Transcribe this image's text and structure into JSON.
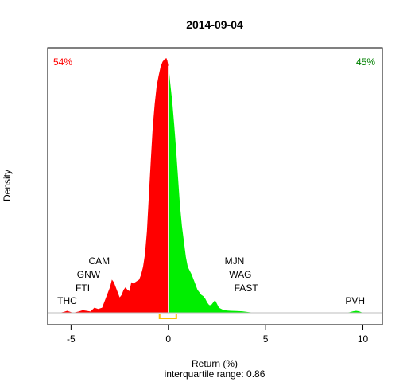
{
  "chart_data": {
    "type": "area",
    "title": "2014-09-04",
    "xlabel": "Return (%)",
    "subtitle": "interquartile range: 0.86",
    "ylabel": "Density",
    "xlim": [
      -6.2,
      11.0
    ],
    "x_ticks": [
      -5,
      0,
      5,
      10
    ],
    "x_tick_labels": [
      "-5",
      "0",
      "5",
      "10"
    ],
    "ylim": [
      0,
      1.0
    ],
    "negative_share": "54%",
    "positive_share": "45%",
    "colors": {
      "negative": "#ff0000",
      "positive": "#00ee00",
      "negative_label": "#ff0000",
      "positive_label": "#008000",
      "iqr_bracket": "#ffc000",
      "baseline": "#bebebe"
    },
    "iqr": {
      "low": -0.45,
      "high": 0.41
    },
    "density": {
      "x": [
        -6.2,
        -5.6,
        -5.35,
        -5.2,
        -5.05,
        -4.9,
        -4.6,
        -4.4,
        -4.2,
        -4.0,
        -3.8,
        -3.6,
        -3.4,
        -3.2,
        -3.0,
        -2.9,
        -2.8,
        -2.7,
        -2.6,
        -2.5,
        -2.4,
        -2.3,
        -2.2,
        -2.1,
        -2.0,
        -1.9,
        -1.8,
        -1.7,
        -1.6,
        -1.5,
        -1.4,
        -1.3,
        -1.2,
        -1.1,
        -1.0,
        -0.9,
        -0.8,
        -0.7,
        -0.6,
        -0.5,
        -0.4,
        -0.3,
        -0.2,
        -0.1,
        -0.05,
        0.0,
        0.05,
        0.1,
        0.2,
        0.3,
        0.4,
        0.5,
        0.6,
        0.7,
        0.8,
        0.9,
        1.0,
        1.1,
        1.2,
        1.3,
        1.4,
        1.5,
        1.6,
        1.7,
        1.8,
        1.9,
        2.0,
        2.1,
        2.2,
        2.3,
        2.4,
        2.6,
        2.8,
        3.0,
        3.2,
        3.5,
        3.8,
        4.0,
        4.2,
        4.5,
        5.0,
        6.0,
        7.0,
        8.0,
        9.0,
        9.3,
        9.5,
        9.65,
        9.8,
        10.0,
        10.5,
        11.0
      ],
      "y": [
        0.0,
        0.0,
        0.004,
        0.008,
        0.004,
        0.0,
        0.005,
        0.01,
        0.008,
        0.005,
        0.02,
        0.015,
        0.02,
        0.06,
        0.1,
        0.13,
        0.12,
        0.1,
        0.08,
        0.06,
        0.07,
        0.09,
        0.1,
        0.09,
        0.085,
        0.12,
        0.115,
        0.12,
        0.125,
        0.13,
        0.15,
        0.18,
        0.23,
        0.32,
        0.46,
        0.6,
        0.73,
        0.82,
        0.89,
        0.93,
        0.965,
        0.985,
        0.995,
        1.0,
        0.99,
        0.97,
        0.94,
        0.9,
        0.83,
        0.74,
        0.64,
        0.53,
        0.42,
        0.34,
        0.28,
        0.22,
        0.18,
        0.165,
        0.15,
        0.13,
        0.11,
        0.09,
        0.08,
        0.07,
        0.065,
        0.055,
        0.04,
        0.03,
        0.03,
        0.04,
        0.05,
        0.02,
        0.012,
        0.009,
        0.008,
        0.007,
        0.006,
        0.004,
        0.002,
        0.0,
        0.0,
        0.0,
        0.0,
        0.0,
        0.0,
        0.002,
        0.006,
        0.008,
        0.006,
        0.0,
        0.0,
        0.0
      ]
    },
    "annotations": [
      {
        "text": "THC",
        "x": -5.2,
        "level": 0
      },
      {
        "text": "FTI",
        "x": -4.4,
        "level": 1
      },
      {
        "text": "GNW",
        "x": -4.1,
        "level": 2
      },
      {
        "text": "CAM",
        "x": -3.55,
        "level": 3
      },
      {
        "text": "FAST",
        "x": 4.0,
        "level": 1
      },
      {
        "text": "WAG",
        "x": 3.7,
        "level": 2
      },
      {
        "text": "MJN",
        "x": 3.4,
        "level": 3
      },
      {
        "text": "PVH",
        "x": 9.6,
        "level": 0
      }
    ]
  }
}
